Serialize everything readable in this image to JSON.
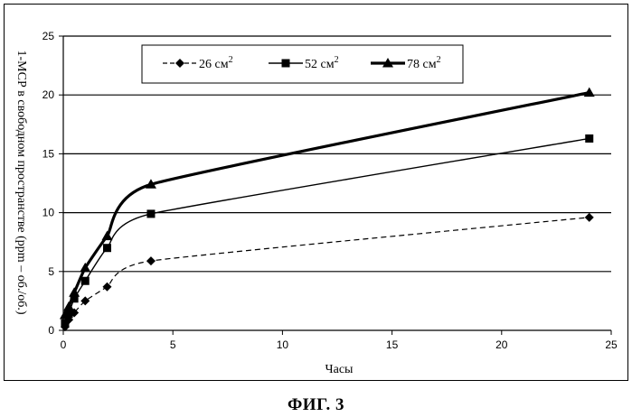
{
  "figure": {
    "caption": "ФИГ. 3"
  },
  "chart_data": {
    "type": "line",
    "xlabel": "Часы",
    "ylabel": "1-МСР в свободном пространстве (ppm – об./об.)",
    "xlim": [
      0,
      25
    ],
    "ylim": [
      0,
      25
    ],
    "xticks": [
      "0",
      "5",
      "10",
      "15",
      "20",
      "25"
    ],
    "yticks": [
      "0",
      "5",
      "10",
      "15",
      "20",
      "25"
    ],
    "grid": "horizontal",
    "legend_position": "top-right",
    "series": [
      {
        "name": "26 см",
        "superscript": "2",
        "marker": "diamond",
        "line": "dashed",
        "x": [
          0.08,
          0.25,
          0.5,
          1,
          2,
          4,
          24
        ],
        "y": [
          0.3,
          0.9,
          1.5,
          2.5,
          3.7,
          5.9,
          9.6
        ]
      },
      {
        "name": "52 см",
        "superscript": "2",
        "marker": "square",
        "line": "thin",
        "x": [
          0.08,
          0.25,
          0.5,
          1,
          2,
          4,
          24
        ],
        "y": [
          0.6,
          1.4,
          2.7,
          4.2,
          7.0,
          9.9,
          16.3
        ]
      },
      {
        "name": "78 см",
        "superscript": "2",
        "marker": "triangle",
        "line": "thick",
        "x": [
          0.08,
          0.25,
          0.5,
          1,
          2,
          4,
          24
        ],
        "y": [
          1.3,
          2.0,
          3.2,
          5.3,
          8.0,
          12.4,
          20.2
        ]
      }
    ]
  }
}
